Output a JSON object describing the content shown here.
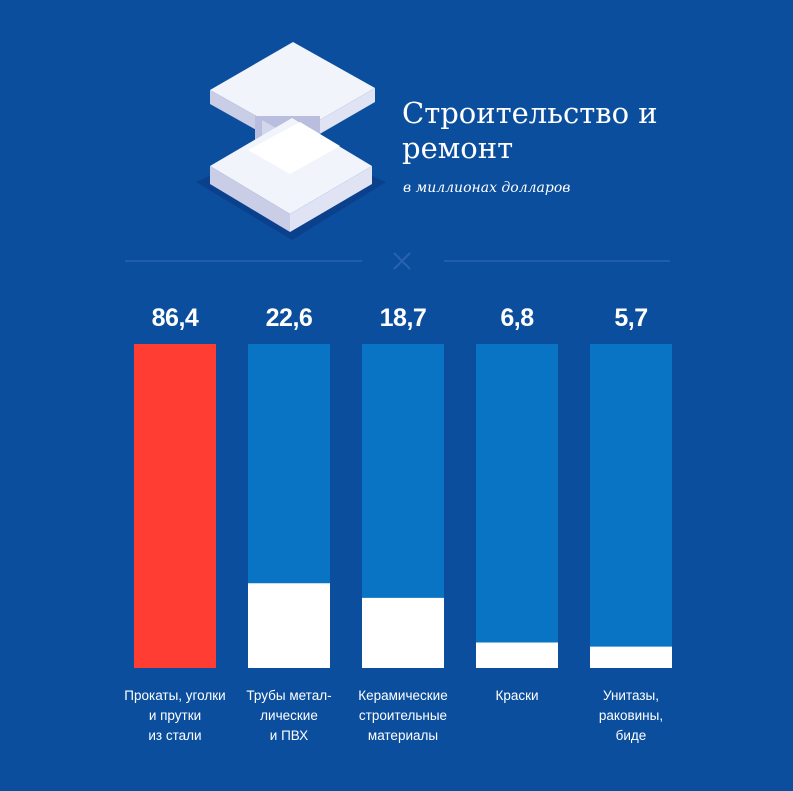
{
  "title": "Строительство и ремонт",
  "subtitle": "в миллионах долларов",
  "icon": "steel-i-beam-icon",
  "colors": {
    "background": "#0b4e9e",
    "bar_track": "#0a74c4",
    "bar_fill": "#ffffff",
    "bar_highlight": "#ff3d32",
    "divider": "#2a62b0"
  },
  "chart_data": {
    "type": "bar",
    "title": "Строительство и ремонт",
    "subtitle": "в миллионах долларов",
    "categories": [
      "Прокаты, уголки и прутки из стали",
      "Трубы металлические и ПВХ",
      "Керамические строительные материалы",
      "Краски",
      "Унитазы, раковины, биде"
    ],
    "category_labels_display": [
      "Прокаты, уголки\nи прутки\nиз стали",
      "Трубы метал-\nлические\nи ПВХ",
      "Керамические\nстроительные\nматериалы",
      "Краски",
      "Унитазы,\nраковины,\nбиде"
    ],
    "values": [
      86.4,
      22.6,
      18.7,
      6.8,
      5.7
    ],
    "value_labels": [
      "86,4",
      "22,6",
      "18,7",
      "6,8",
      "5,7"
    ],
    "highlight_index": 0,
    "ylim": [
      0,
      86.4
    ],
    "xlabel": "",
    "ylabel": "",
    "grid": false,
    "legend": "none"
  }
}
